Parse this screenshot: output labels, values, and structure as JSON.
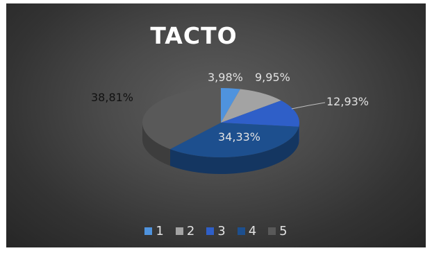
{
  "chart_data": {
    "type": "pie",
    "title": "TACTO",
    "categories": [
      "1",
      "2",
      "3",
      "4",
      "5"
    ],
    "values": [
      3.98,
      9.95,
      12.93,
      34.33,
      38.81
    ],
    "labels": [
      "3,98%",
      "9,95%",
      "12,93%",
      "34,33%",
      "38,81%"
    ],
    "colors": [
      "#4f93de",
      "#a3a3a3",
      "#2f5fc8",
      "#1d4f8e",
      "#595959"
    ],
    "legend_position": "bottom",
    "style": "3d"
  }
}
